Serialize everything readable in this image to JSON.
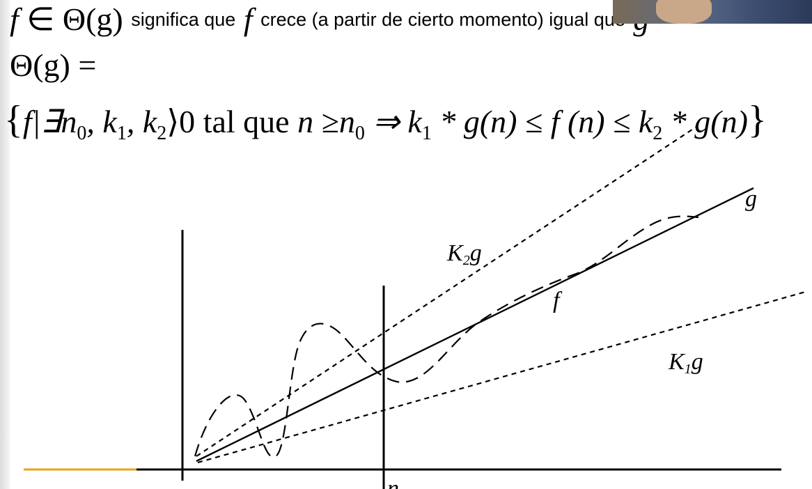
{
  "formula": {
    "line1_f": "f",
    "line1_in": "∈",
    "line1_theta": "Θ(g)",
    "line1_text_a": "significa que",
    "line1_f2": "f",
    "line1_text_b": "crece (a partir de cierto momento) igual que",
    "line1_g": "g",
    "line2": "Θ(g) =",
    "line3_open": "{",
    "line3_set": "f|∃n",
    "line3_sub0": "0",
    "line3_k1pre": ", k",
    "line3_sub1": "1",
    "line3_k2pre": ", k",
    "line3_sub2": "2",
    "line3_gt": "⟩0 ",
    "line3_tal": "tal que",
    "line3_n": " n ≥n",
    "line3_subn0": "0",
    "line3_impl": " ⇒ k",
    "line3_subk1": "1",
    "line3_mid1": " * g(n) ≤ f (n) ≤ k",
    "line3_subk2": "2",
    "line3_mid2": " * g(n)",
    "line3_close": "}"
  },
  "diagram": {
    "label_g": "g",
    "label_k2g": "K",
    "label_k2g_sub": "2",
    "label_k2g_g": "g",
    "label_f": "f",
    "label_k1g": "K",
    "label_k1g_sub": "1",
    "label_k1g_g": "g",
    "label_n0": "n",
    "accent_color": "#e8a317"
  }
}
